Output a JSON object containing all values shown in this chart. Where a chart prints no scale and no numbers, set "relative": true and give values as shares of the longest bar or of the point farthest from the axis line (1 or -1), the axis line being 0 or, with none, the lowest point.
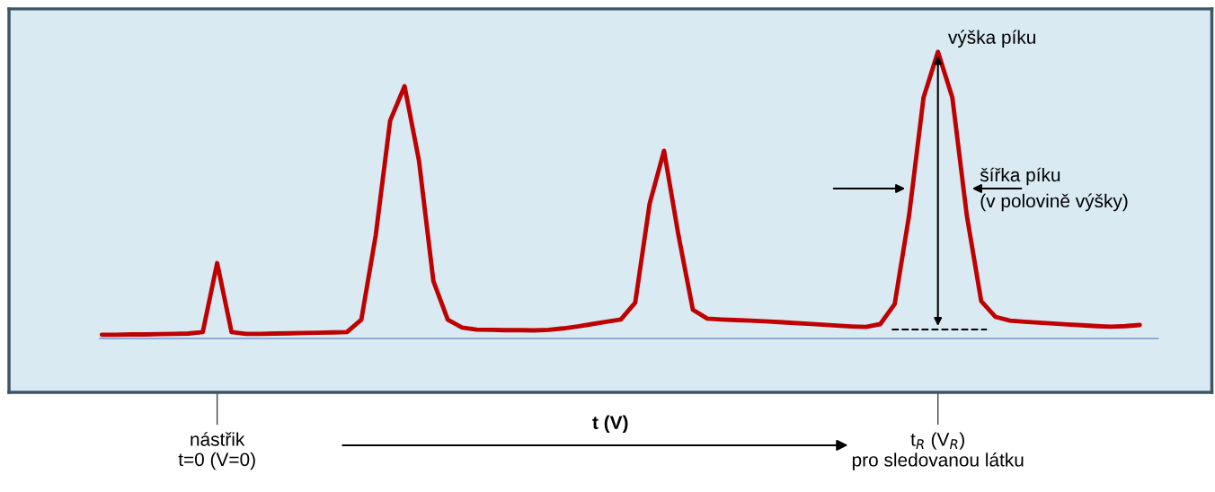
{
  "chart_data": {
    "type": "line",
    "relative": true,
    "xlabel": "t (V)",
    "categories": [
      null,
      null,
      null,
      null,
      null,
      null,
      null,
      null,
      "nástřik\nt=0 (V=0)",
      null,
      null,
      null,
      null,
      null,
      null,
      null,
      null,
      null,
      null,
      null,
      null,
      null,
      null,
      null,
      null,
      null,
      null,
      null,
      null,
      null,
      null,
      null,
      null,
      null,
      null,
      null,
      null,
      null,
      null,
      null,
      null,
      null,
      null,
      null,
      null,
      null,
      null,
      null,
      null,
      null,
      null,
      null,
      null,
      null,
      null,
      null,
      null,
      null,
      "t$_{R}$ (V$_{R}$)\npro sledovanou látku",
      null,
      null,
      null,
      null,
      null,
      null,
      null,
      null,
      null,
      null,
      null,
      null,
      null,
      null
    ],
    "series": [
      {
        "color": "#c00000",
        "values": [
          0.013,
          0.013,
          0.014,
          0.014,
          0.015,
          0.016,
          0.017,
          0.022,
          0.263,
          0.022,
          0.016,
          0.016,
          0.017,
          0.018,
          0.019,
          0.02,
          0.021,
          0.022,
          0.065,
          0.36,
          0.76,
          0.88,
          0.62,
          0.2,
          0.065,
          0.038,
          0.031,
          0.03,
          0.029,
          0.029,
          0.028,
          0.03,
          0.035,
          0.042,
          0.05,
          0.058,
          0.066,
          0.125,
          0.47,
          0.655,
          0.36,
          0.1,
          0.069,
          0.066,
          0.064,
          0.062,
          0.06,
          0.057,
          0.054,
          0.051,
          0.048,
          0.045,
          0.042,
          0.04,
          0.05,
          0.12,
          0.43,
          0.84,
          1.0,
          0.84,
          0.43,
          0.13,
          0.075,
          0.062,
          0.058,
          0.055,
          0.052,
          0.049,
          0.046,
          0.043,
          0.041,
          0.043,
          0.047
        ]
      }
    ],
    "annotations": [
      {
        "text": "výška píku",
        "x": "t$_{R}$ (V$_{R}$)\npro sledovanou látku",
        "y": 1.0
      },
      "šířka píku\n(v polovině výšky)"
    ],
    "grid": false,
    "marker": "none",
    "line_style": "solid"
  }
}
